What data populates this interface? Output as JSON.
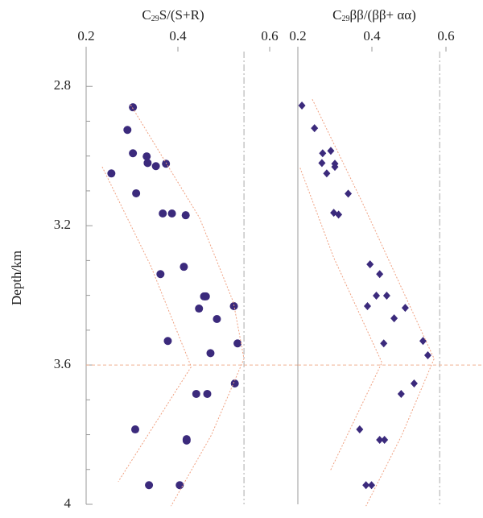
{
  "chart_data": [
    {
      "type": "scatter",
      "title_parts": [
        "C",
        "29",
        "S/(S+R)"
      ],
      "ylabel": "Depth/km",
      "xlim": [
        0.2,
        0.6
      ],
      "xticks": [
        0.2,
        0.4,
        0.6
      ],
      "ylim": [
        2.7,
        4.0
      ],
      "yticks": [
        2.8,
        3.2,
        3.6,
        4.0
      ],
      "yminorticks": [
        2.9,
        3.0,
        3.1,
        3.3,
        3.4,
        3.5,
        3.7,
        3.8,
        3.9
      ],
      "y_inverted": true,
      "vline": 0.544,
      "hline": 3.6,
      "series": [
        {
          "marker": "circle",
          "color": "#3b2a7c",
          "x": [
            0.302,
            0.29,
            0.302,
            0.332,
            0.334,
            0.352,
            0.374,
            0.255,
            0.309,
            0.367,
            0.387,
            0.417,
            0.413,
            0.362,
            0.457,
            0.461,
            0.446,
            0.522,
            0.485,
            0.378,
            0.53,
            0.471,
            0.524,
            0.44,
            0.464,
            0.307,
            0.419,
            0.419,
            0.337,
            0.404
          ],
          "values": [
            2.86,
            2.925,
            2.992,
            3.001,
            3.02,
            3.029,
            3.022,
            3.05,
            3.107,
            3.165,
            3.165,
            3.17,
            3.318,
            3.339,
            3.403,
            3.403,
            3.438,
            3.431,
            3.468,
            3.531,
            3.538,
            3.566,
            3.653,
            3.683,
            3.683,
            3.785,
            3.813,
            3.817,
            3.945,
            3.945
          ]
        },
        {
          "marker": "line",
          "color": "#f0a080",
          "x": [
            0.235,
            0.341,
            0.429,
            0.27
          ],
          "values": [
            3.031,
            3.316,
            3.605,
            3.935
          ]
        },
        {
          "marker": "line",
          "color": "#f0a080",
          "x": [
            0.297,
            0.447,
            0.521,
            0.544,
            0.473,
            0.385
          ],
          "values": [
            2.853,
            3.177,
            3.42,
            3.582,
            3.801,
            4.005
          ]
        }
      ]
    },
    {
      "type": "scatter",
      "title_parts": [
        "C",
        "29",
        "ββ/(ββ+ αα)"
      ],
      "xlim": [
        0.2,
        0.7
      ],
      "xticks": [
        0.2,
        0.4,
        0.6
      ],
      "ylim": [
        2.7,
        4.0
      ],
      "y_inverted": true,
      "vline": 0.583,
      "hline": 3.6,
      "series": [
        {
          "marker": "diamond",
          "color": "#3b2a7c",
          "x": [
            0.211,
            0.245,
            0.267,
            0.289,
            0.265,
            0.3,
            0.3,
            0.278,
            0.336,
            0.297,
            0.31,
            0.395,
            0.421,
            0.412,
            0.44,
            0.388,
            0.49,
            0.46,
            0.432,
            0.538,
            0.551,
            0.514,
            0.479,
            0.367,
            0.421,
            0.434,
            0.384,
            0.399
          ],
          "values": [
            2.855,
            2.92,
            2.992,
            2.985,
            3.02,
            3.022,
            3.031,
            3.05,
            3.108,
            3.163,
            3.168,
            3.311,
            3.339,
            3.401,
            3.401,
            3.431,
            3.436,
            3.466,
            3.538,
            3.531,
            3.572,
            3.653,
            3.683,
            3.785,
            3.815,
            3.815,
            3.945,
            3.945
          ]
        },
        {
          "marker": "line",
          "color": "#f0a080",
          "x": [
            0.206,
            0.297,
            0.427,
            0.287
          ],
          "values": [
            3.034,
            3.292,
            3.593,
            3.905
          ]
        },
        {
          "marker": "line",
          "color": "#f0a080",
          "x": [
            0.239,
            0.373,
            0.568,
            0.481,
            0.384
          ],
          "values": [
            2.837,
            3.131,
            3.582,
            3.801,
            4.005
          ]
        }
      ]
    }
  ]
}
